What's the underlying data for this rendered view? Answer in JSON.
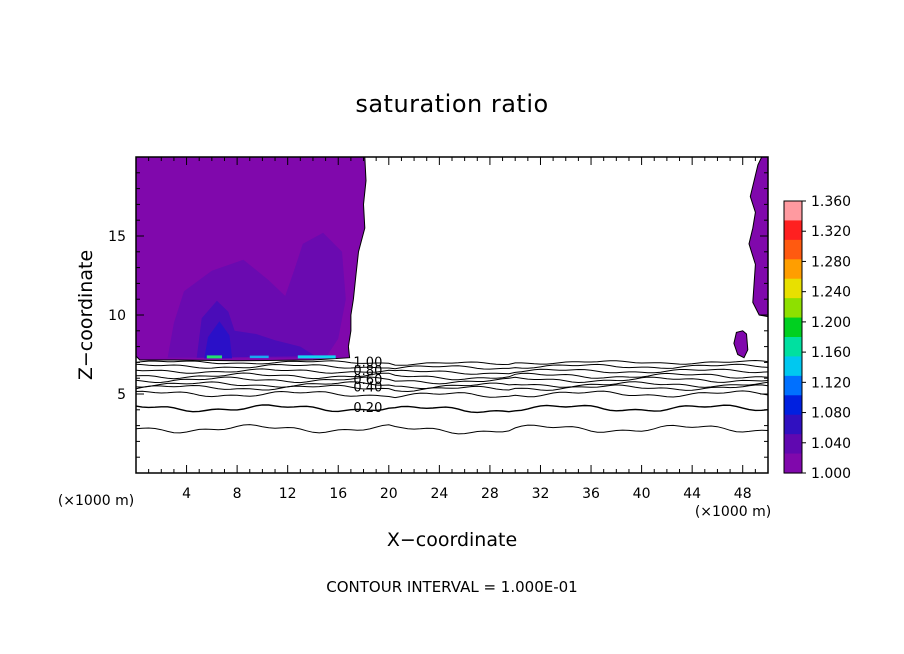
{
  "chart_data": {
    "type": "contour",
    "title": "saturation ratio",
    "xlabel": "X−coordinate",
    "ylabel": "Z−coordinate",
    "x_unit_left": "(×1000 m)",
    "x_unit_right": "(×1000 m)",
    "xlim": [
      0,
      50
    ],
    "ylim": [
      0,
      20
    ],
    "x_ticks": [
      4,
      8,
      12,
      16,
      20,
      24,
      28,
      32,
      36,
      40,
      44,
      48
    ],
    "y_ticks": [
      5,
      10,
      15
    ],
    "contour_labels": [
      {
        "text": "1.00",
        "x": 17.2,
        "z": 7.0
      },
      {
        "text": "0.80",
        "x": 17.2,
        "z": 6.45
      },
      {
        "text": "0.60",
        "x": 17.2,
        "z": 5.9
      },
      {
        "text": "0.40",
        "x": 17.2,
        "z": 5.4
      },
      {
        "text": "0.20",
        "x": 17.2,
        "z": 4.1
      }
    ],
    "contour_levels": [
      0.1,
      0.2,
      0.3,
      0.4,
      0.5,
      0.6,
      0.7,
      0.8,
      0.9,
      1.0
    ],
    "colorbar": {
      "ticks": [
        "1.360",
        "1.320",
        "1.280",
        "1.240",
        "1.200",
        "1.160",
        "1.120",
        "1.080",
        "1.040",
        "1.000"
      ],
      "range": [
        1.0,
        1.36
      ],
      "colors": [
        "#ff9aa0",
        "#ff2020",
        "#ff5a10",
        "#ff9e00",
        "#e8e000",
        "#8ee000",
        "#00d020",
        "#00e0a0",
        "#00c8f0",
        "#0070ff",
        "#0020e0",
        "#3010c0",
        "#6008b0",
        "#8008ac"
      ]
    },
    "grid": false
  },
  "footer": {
    "contour_interval": "CONTOUR INTERVAL = 1.000E-01"
  }
}
